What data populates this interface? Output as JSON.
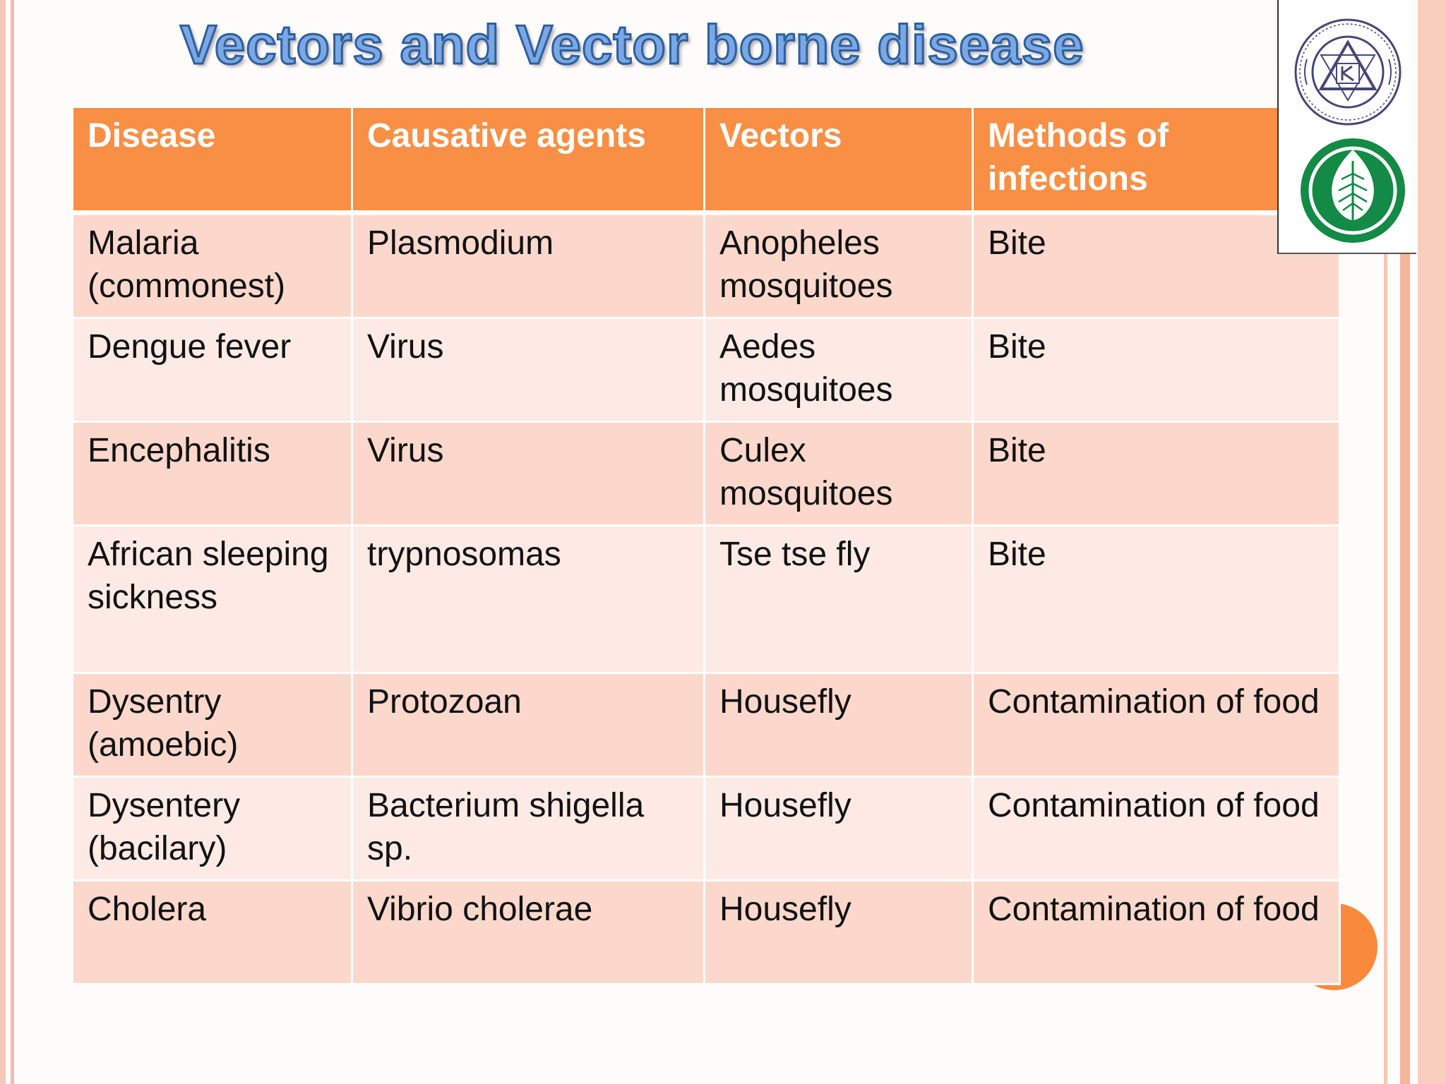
{
  "slide": {
    "title": "Vectors and Vector borne disease"
  },
  "table": {
    "headers": [
      "Disease",
      "Causative agents",
      "Vectors",
      "Methods of infections"
    ],
    "rows": [
      [
        "Malaria (commonest)",
        "Plasmodium",
        "Anopheles mosquitoes",
        "Bite"
      ],
      [
        "Dengue fever",
        "Virus",
        "Aedes mosquitoes",
        "Bite"
      ],
      [
        "Encephalitis",
        "Virus",
        "Culex mosquitoes",
        "Bite"
      ],
      [
        "African sleeping sickness",
        "trypnosomas",
        "Tse tse fly",
        "Bite"
      ],
      [
        "Dysentry (amoebic)",
        "Protozoan",
        "Housefly",
        "Contamination of food"
      ],
      [
        "Dysentery (bacilary)",
        "Bacterium shigella sp.",
        "Housefly",
        "Contamination of food"
      ],
      [
        "Cholera",
        "Vibrio cholerae",
        "Housefly",
        "Contamination of food"
      ]
    ]
  },
  "logos": {
    "seal_icon": "university-seal-icon",
    "leaf_icon": "leaf-emblem-icon"
  },
  "colors": {
    "header_fill": "#f98f44",
    "row_odd": "#fcd8cc",
    "row_even": "#fdeae5",
    "title_fill": "#79a8e4",
    "title_outline": "#2f5f9c",
    "accent_circle": "#f98a3c",
    "emblem_green": "#138a45"
  }
}
